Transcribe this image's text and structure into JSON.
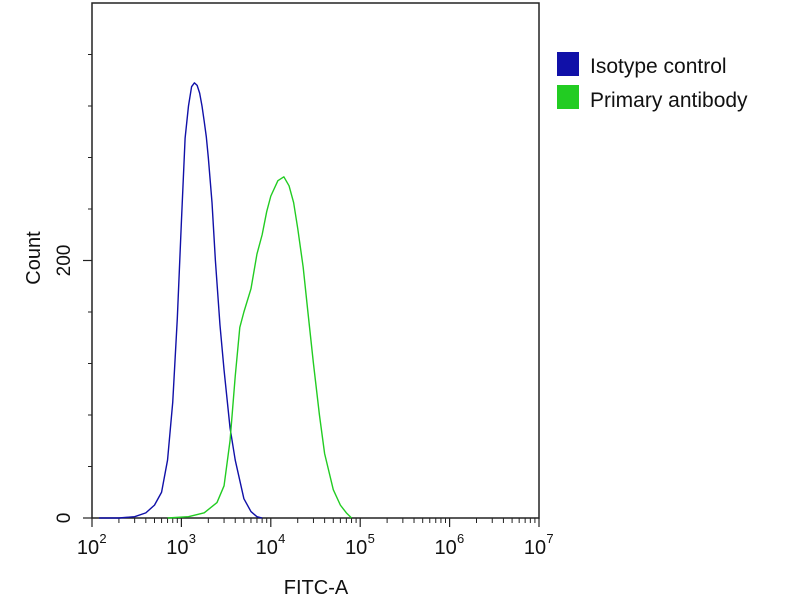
{
  "chart_data": {
    "type": "line",
    "title": "",
    "xlabel": "FITC-A",
    "ylabel": "Count",
    "x_scale": "log",
    "xlim": [
      100,
      10000000
    ],
    "ylim": [
      0,
      400
    ],
    "x_major_ticks": [
      100,
      1000,
      10000,
      100000,
      1000000,
      10000000
    ],
    "x_tick_base_label": "10",
    "x_tick_exponent_labels": [
      "2",
      "3",
      "4",
      "5",
      "6",
      "7"
    ],
    "y_tick_labels": [
      {
        "value": 0,
        "label": "0"
      },
      {
        "value": 200,
        "label": "200"
      }
    ],
    "y_minor_ticks": [
      40,
      80,
      120,
      160,
      240,
      280,
      320,
      360
    ],
    "grid": false,
    "legend_position": "right",
    "series": [
      {
        "name": "Isotype control",
        "color": "#1010a8",
        "points": [
          [
            120,
            0
          ],
          [
            200,
            0
          ],
          [
            300,
            1
          ],
          [
            400,
            4
          ],
          [
            500,
            10
          ],
          [
            600,
            20
          ],
          [
            700,
            45
          ],
          [
            800,
            90
          ],
          [
            900,
            155
          ],
          [
            1000,
            230
          ],
          [
            1100,
            295
          ],
          [
            1200,
            320
          ],
          [
            1300,
            335
          ],
          [
            1400,
            338
          ],
          [
            1500,
            336
          ],
          [
            1600,
            330
          ],
          [
            1700,
            320
          ],
          [
            1800,
            308
          ],
          [
            1900,
            296
          ],
          [
            2000,
            280
          ],
          [
            2200,
            245
          ],
          [
            2400,
            200
          ],
          [
            2700,
            150
          ],
          [
            3000,
            115
          ],
          [
            3500,
            70
          ],
          [
            4000,
            45
          ],
          [
            5000,
            15
          ],
          [
            6000,
            5
          ],
          [
            7000,
            1
          ],
          [
            8000,
            0
          ]
        ]
      },
      {
        "name": "Primary antibody",
        "color": "#22cc22",
        "points": [
          [
            700,
            0
          ],
          [
            1200,
            1
          ],
          [
            1800,
            4
          ],
          [
            2500,
            12
          ],
          [
            3000,
            25
          ],
          [
            3500,
            60
          ],
          [
            4000,
            110
          ],
          [
            4500,
            148
          ],
          [
            5000,
            160
          ],
          [
            6000,
            178
          ],
          [
            7000,
            205
          ],
          [
            8000,
            220
          ],
          [
            9000,
            238
          ],
          [
            10000,
            250
          ],
          [
            12000,
            262
          ],
          [
            14000,
            265
          ],
          [
            16000,
            258
          ],
          [
            18000,
            245
          ],
          [
            20000,
            225
          ],
          [
            23000,
            195
          ],
          [
            26000,
            160
          ],
          [
            30000,
            120
          ],
          [
            35000,
            80
          ],
          [
            40000,
            50
          ],
          [
            50000,
            22
          ],
          [
            60000,
            10
          ],
          [
            70000,
            4
          ],
          [
            80000,
            0
          ]
        ]
      }
    ]
  }
}
